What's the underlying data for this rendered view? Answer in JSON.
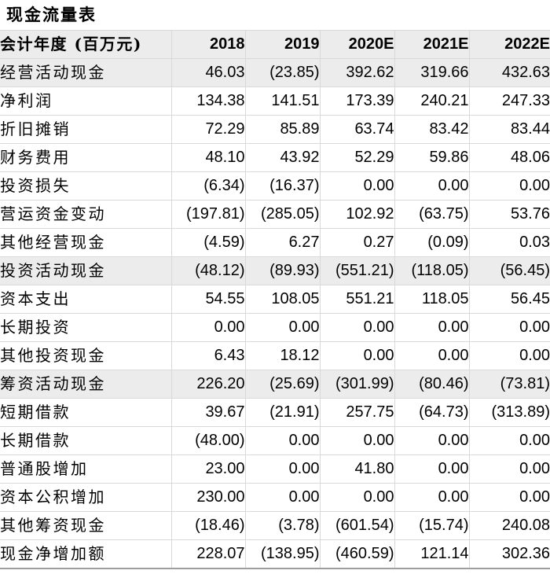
{
  "title": "现金流量表",
  "table": {
    "header": [
      "会计年度 (百万元)",
      "2018",
      "2019",
      "2020E",
      "2021E",
      "2022E"
    ],
    "rows": [
      {
        "label": "经营活动现金",
        "values": [
          "46.03",
          "(23.85)",
          "392.62",
          "319.66",
          "432.63"
        ],
        "shaded": true
      },
      {
        "label": "净利润",
        "values": [
          "134.38",
          "141.51",
          "173.39",
          "240.21",
          "247.33"
        ],
        "shaded": false
      },
      {
        "label": "折旧摊销",
        "values": [
          "72.29",
          "85.89",
          "63.74",
          "83.42",
          "83.44"
        ],
        "shaded": false
      },
      {
        "label": "财务费用",
        "values": [
          "48.10",
          "43.92",
          "52.29",
          "59.86",
          "48.06"
        ],
        "shaded": false
      },
      {
        "label": "投资损失",
        "values": [
          "(6.34)",
          "(16.37)",
          "0.00",
          "0.00",
          "0.00"
        ],
        "shaded": false
      },
      {
        "label": "营运资金变动",
        "values": [
          "(197.81)",
          "(285.05)",
          "102.92",
          "(63.75)",
          "53.76"
        ],
        "shaded": false
      },
      {
        "label": "其他经营现金",
        "values": [
          "(4.59)",
          "6.27",
          "0.27",
          "(0.09)",
          "0.03"
        ],
        "shaded": false
      },
      {
        "label": "投资活动现金",
        "values": [
          "(48.12)",
          "(89.93)",
          "(551.21)",
          "(118.05)",
          "(56.45)"
        ],
        "shaded": true
      },
      {
        "label": "资本支出",
        "values": [
          "54.55",
          "108.05",
          "551.21",
          "118.05",
          "56.45"
        ],
        "shaded": false
      },
      {
        "label": "长期投资",
        "values": [
          "0.00",
          "0.00",
          "0.00",
          "0.00",
          "0.00"
        ],
        "shaded": false
      },
      {
        "label": "其他投资现金",
        "values": [
          "6.43",
          "18.12",
          "0.00",
          "0.00",
          "0.00"
        ],
        "shaded": false
      },
      {
        "label": "筹资活动现金",
        "values": [
          "226.20",
          "(25.69)",
          "(301.99)",
          "(80.46)",
          "(73.81)"
        ],
        "shaded": true
      },
      {
        "label": "短期借款",
        "values": [
          "39.67",
          "(21.91)",
          "257.75",
          "(64.73)",
          "(313.89)"
        ],
        "shaded": false
      },
      {
        "label": "长期借款",
        "values": [
          "(48.00)",
          "0.00",
          "0.00",
          "0.00",
          "0.00"
        ],
        "shaded": false
      },
      {
        "label": "普通股增加",
        "values": [
          "23.00",
          "0.00",
          "41.80",
          "0.00",
          "0.00"
        ],
        "shaded": false
      },
      {
        "label": "资本公积增加",
        "values": [
          "230.00",
          "0.00",
          "0.00",
          "0.00",
          "0.00"
        ],
        "shaded": false
      },
      {
        "label": "其他筹资现金",
        "values": [
          "(18.46)",
          "(3.78)",
          "(601.54)",
          "(15.74)",
          "240.08"
        ],
        "shaded": false
      },
      {
        "label": "现金净增加额",
        "values": [
          "228.07",
          "(138.95)",
          "(460.59)",
          "121.14",
          "302.36"
        ],
        "shaded": false
      }
    ]
  },
  "colors": {
    "shaded_row": "#ececec",
    "grid_border": "#d9d9d9",
    "bottom_border": "#9e9e9e",
    "text": "#000000",
    "background": "#ffffff"
  }
}
